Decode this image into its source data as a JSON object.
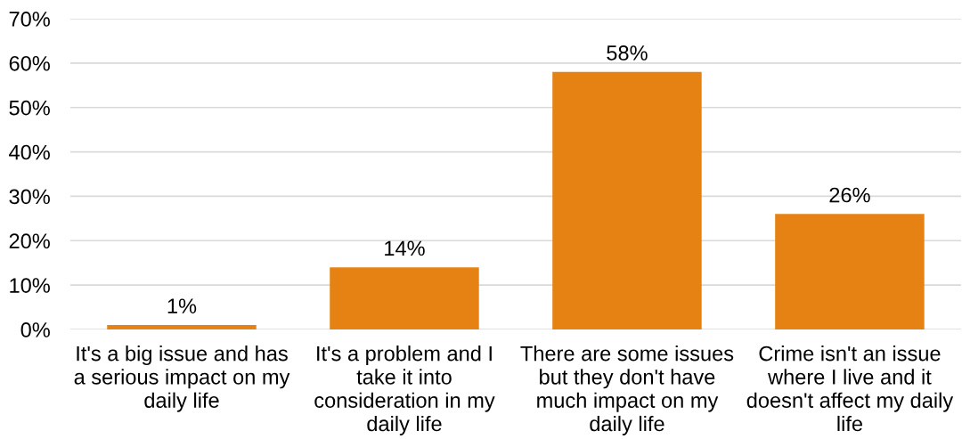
{
  "chart_data": {
    "type": "bar",
    "categories": [
      "It's a big issue and has a serious impact on my daily life",
      "It's a problem and I take it into consideration in my daily life",
      "There are some issues but they don't have much impact on my daily life",
      "Crime isn't an issue where I live and it doesn't affect my daily life"
    ],
    "values": [
      1,
      14,
      58,
      26
    ],
    "color": "#e58213",
    "value_labels": [
      "1%",
      "14%",
      "58%",
      "26%"
    ],
    "ylim": [
      0,
      70
    ],
    "yticks": [
      {
        "value": 0,
        "label": "0%"
      },
      {
        "value": 10,
        "label": "10%"
      },
      {
        "value": 20,
        "label": "20%"
      },
      {
        "value": 30,
        "label": "30%"
      },
      {
        "value": 40,
        "label": "40%"
      },
      {
        "value": 50,
        "label": "50%"
      },
      {
        "value": 60,
        "label": "60%"
      },
      {
        "value": 70,
        "label": "70%"
      }
    ],
    "grid": "y",
    "legend": false
  }
}
